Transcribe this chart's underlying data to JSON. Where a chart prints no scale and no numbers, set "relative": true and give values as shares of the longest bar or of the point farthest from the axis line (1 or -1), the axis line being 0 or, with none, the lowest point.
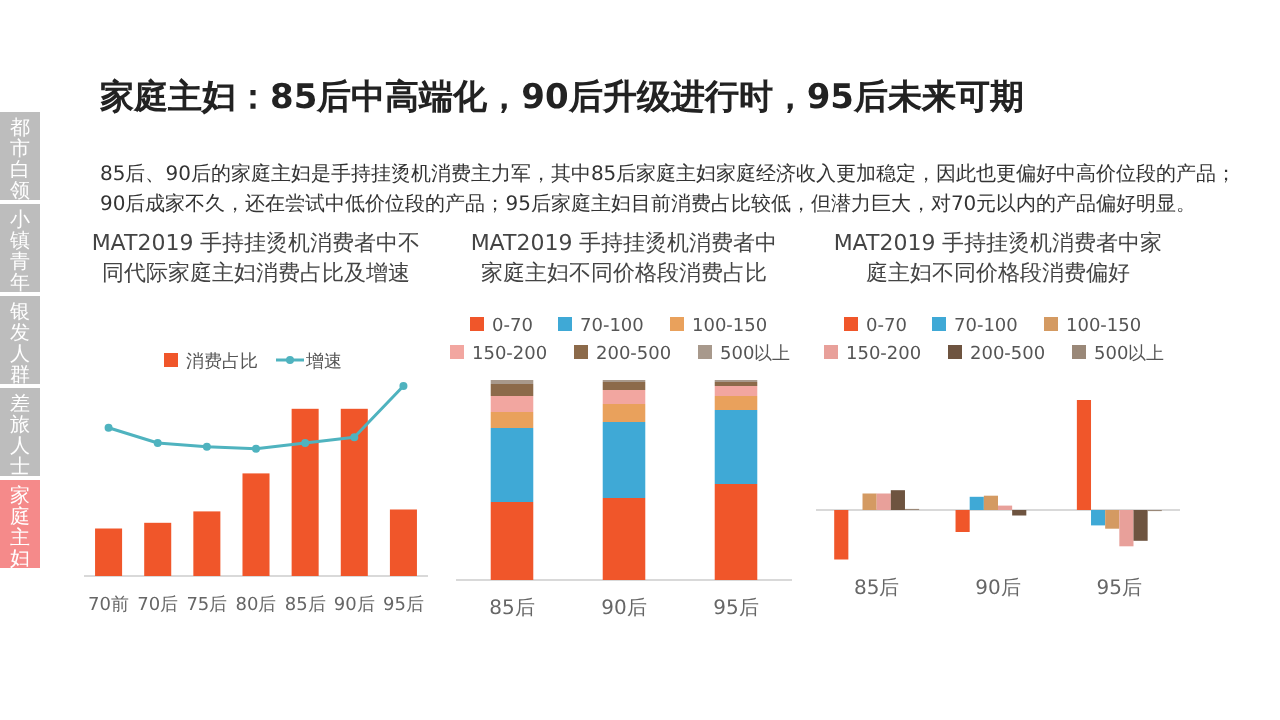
{
  "chart_data": [
    {
      "type": "other",
      "title": "家庭主妇：85后中高端化，90后升级进行时，95后未来可期",
      "annotations": [
        "85后、90后的家庭主妇是手持挂烫机消费主力军，其中85后家庭主妇家庭经济收入更加稳定，因此也更偏好中高价位段的产品；90后成家不久，还在尝试中低价位段的产品；95后家庭主妇目前消费占比较低，但潜力巨大，对70元以内的产品偏好明显。",
        "都市白领",
        "小镇青年",
        "银发人群",
        "差旅人士",
        "家庭主妇"
      ]
    },
    {
      "type": "bar",
      "title": "MAT2019 手持挂烫机消费者中不同代际家庭主妇消费占比及增速",
      "relative": true,
      "legend": "top",
      "marker": "circle",
      "categories": [
        "70前",
        "70后",
        "75后",
        "80后",
        "85后",
        "90后",
        "95后"
      ],
      "series": [
        {
          "name": "消费占比",
          "color": "#f0562a",
          "values": [
            0.25,
            0.28,
            0.34,
            0.54,
            0.88,
            0.88,
            0.35
          ]
        },
        {
          "name": "增速",
          "type": "line",
          "color": "#4fb3bf",
          "values": [
            0.78,
            0.7,
            0.68,
            0.67,
            0.7,
            0.73,
            1
          ]
        }
      ]
    },
    {
      "type": "bar",
      "title": "MAT2019 手持挂烫机消费者中家庭主妇不同价格段消费占比",
      "relative": true,
      "stacked": true,
      "legend": "top",
      "categories": [
        "85后",
        "90后",
        "95后"
      ],
      "series": [
        {
          "name": "0-70",
          "color": "#f0562a",
          "values": [
            0.39,
            0.41,
            0.48
          ]
        },
        {
          "name": "70-100",
          "color": "#3fa9d6",
          "values": [
            0.37,
            0.38,
            0.37
          ]
        },
        {
          "name": "100-150",
          "color": "#e9a15c",
          "values": [
            0.08,
            0.09,
            0.07
          ]
        },
        {
          "name": "150-200",
          "color": "#f2a6a0",
          "values": [
            0.08,
            0.07,
            0.05
          ]
        },
        {
          "name": "200-500",
          "color": "#8c6a4a",
          "values": [
            0.06,
            0.04,
            0.02
          ]
        },
        {
          "name": "500以上",
          "color": "#a8998c",
          "values": [
            0.02,
            0.01,
            0.01
          ]
        }
      ]
    },
    {
      "type": "bar",
      "title": "MAT2019 手持挂烫机消费者中家庭主妇不同价格段消费偏好",
      "relative": true,
      "legend": "top",
      "categories": [
        "85后",
        "90后",
        "95后"
      ],
      "series": [
        {
          "name": "0-70",
          "color": "#f0562a",
          "values": [
            -0.45,
            -0.2,
            1
          ]
        },
        {
          "name": "70-100",
          "color": "#3fa9d6",
          "values": [
            0,
            0.12,
            -0.14
          ]
        },
        {
          "name": "100-150",
          "color": "#d49a62",
          "values": [
            0.15,
            0.13,
            -0.17
          ]
        },
        {
          "name": "150-200",
          "color": "#e8a09a",
          "values": [
            0.15,
            0.04,
            -0.33
          ]
        },
        {
          "name": "200-500",
          "color": "#6e5440",
          "values": [
            0.18,
            -0.05,
            -0.28
          ]
        },
        {
          "name": "500以上",
          "color": "#9a8878",
          "values": [
            0.01,
            0,
            -0.01
          ]
        }
      ]
    }
  ]
}
